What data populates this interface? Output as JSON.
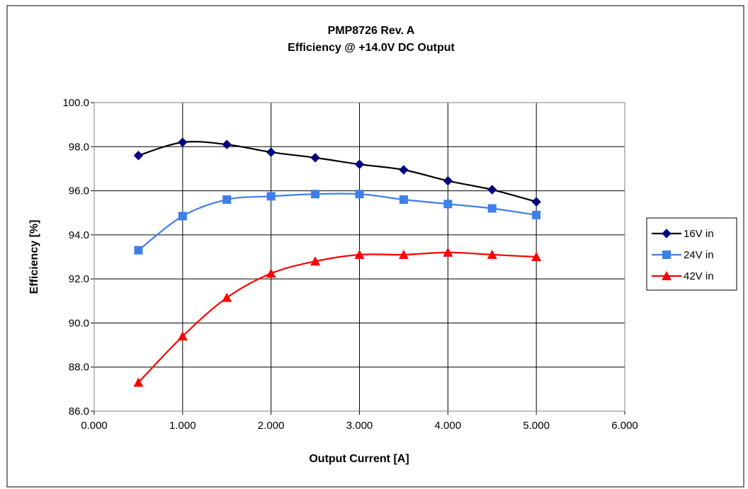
{
  "chart_data": {
    "type": "line",
    "title": [
      "PMP8726 Rev. A",
      "Efficiency @ +14.0V DC Output"
    ],
    "xlabel": "Output Current [A]",
    "ylabel": "Efficiency [%]",
    "xlim": [
      0,
      6
    ],
    "ylim": [
      86,
      100
    ],
    "x_ticks": [
      0,
      1,
      2,
      3,
      4,
      5,
      6
    ],
    "x_tick_labels": [
      "0.000",
      "1.000",
      "2.000",
      "3.000",
      "4.000",
      "5.000",
      "6.000"
    ],
    "y_ticks": [
      86,
      88,
      90,
      92,
      94,
      96,
      98,
      100
    ],
    "y_tick_labels": [
      "86.0",
      "88.0",
      "90.0",
      "92.0",
      "94.0",
      "96.0",
      "98.0",
      "100.0"
    ],
    "grid": true,
    "legend_position": "right",
    "x": [
      0.5,
      1.0,
      1.5,
      2.0,
      2.5,
      3.0,
      3.5,
      4.0,
      4.5,
      5.0
    ],
    "series": [
      {
        "name": "16V in",
        "color": "#000000",
        "marker_color": "#000080",
        "marker": "diamond",
        "values": [
          97.6,
          98.2,
          98.1,
          97.75,
          97.5,
          97.2,
          96.95,
          96.45,
          96.05,
          95.5
        ]
      },
      {
        "name": "24V in",
        "color": "#3f7fe8",
        "marker_color": "#3f7fe8",
        "marker": "square",
        "values": [
          93.3,
          94.85,
          95.6,
          95.75,
          95.85,
          95.85,
          95.6,
          95.4,
          95.2,
          94.9
        ]
      },
      {
        "name": "42V in",
        "color": "#ff0000",
        "marker_color": "#ff0000",
        "marker": "triangle",
        "values": [
          87.3,
          89.4,
          91.15,
          92.25,
          92.8,
          93.1,
          93.1,
          93.2,
          93.1,
          93.0
        ]
      }
    ]
  }
}
